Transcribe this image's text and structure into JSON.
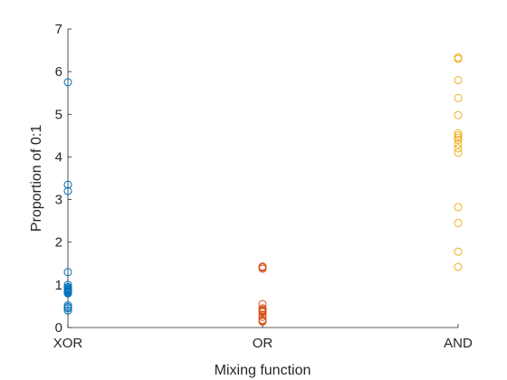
{
  "chart_data": {
    "type": "scatter",
    "title": "",
    "xlabel": "Mixing function",
    "ylabel": "Proportion of 0:1",
    "categories": [
      "XOR",
      "OR",
      "AND"
    ],
    "ylim": [
      0,
      7
    ],
    "yticks": [
      "0",
      "1",
      "2",
      "3",
      "4",
      "5",
      "6",
      "7"
    ],
    "grid": false,
    "series": [
      {
        "category": "XOR",
        "color": "#0072BD",
        "values": [
          5.75,
          3.35,
          3.2,
          1.3,
          1.0,
          0.95,
          0.92,
          0.9,
          0.88,
          0.86,
          0.84,
          0.82,
          0.8,
          0.52,
          0.48,
          0.45,
          0.4
        ]
      },
      {
        "category": "OR",
        "color": "#D95319",
        "values": [
          1.43,
          1.41,
          1.38,
          0.55,
          0.45,
          0.42,
          0.4,
          0.38,
          0.36,
          0.3,
          0.25,
          0.18,
          0.16,
          0.15,
          0.14
        ]
      },
      {
        "category": "AND",
        "color": "#EDB120",
        "values": [
          6.33,
          6.3,
          5.8,
          5.38,
          4.98,
          4.55,
          4.5,
          4.45,
          4.4,
          4.3,
          4.2,
          4.1,
          2.82,
          2.45,
          1.78,
          1.42
        ]
      }
    ]
  }
}
